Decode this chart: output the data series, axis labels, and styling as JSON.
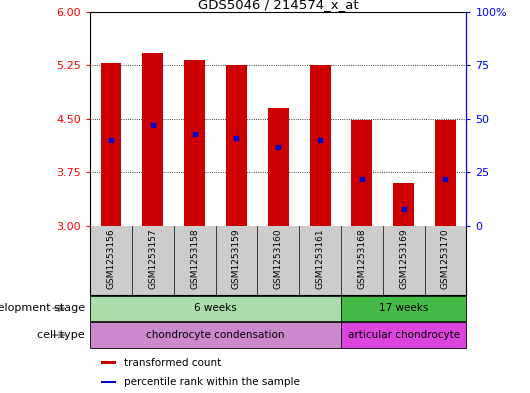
{
  "title": "GDS5046 / 214574_x_at",
  "samples": [
    "GSM1253156",
    "GSM1253157",
    "GSM1253158",
    "GSM1253159",
    "GSM1253160",
    "GSM1253161",
    "GSM1253168",
    "GSM1253169",
    "GSM1253170"
  ],
  "transformed_counts": [
    5.28,
    5.42,
    5.32,
    5.25,
    4.65,
    5.25,
    4.48,
    3.6,
    4.48
  ],
  "percentile_ranks": [
    40,
    47,
    43,
    41,
    37,
    40,
    22,
    8,
    22
  ],
  "ymin": 3.0,
  "ymax": 6.0,
  "yright_min": 0,
  "yright_max": 100,
  "yticks_left": [
    3,
    3.75,
    4.5,
    5.25,
    6
  ],
  "yticks_right": [
    0,
    25,
    50,
    75,
    100
  ],
  "grid_values": [
    3.75,
    4.5,
    5.25
  ],
  "bar_color": "#cc0000",
  "percentile_color": "#0000cc",
  "bar_width": 0.5,
  "dev_stage_groups": [
    {
      "label": "6 weeks",
      "start": 0,
      "end": 5,
      "color": "#aaddaa"
    },
    {
      "label": "17 weeks",
      "start": 6,
      "end": 8,
      "color": "#44bb44"
    }
  ],
  "cell_type_groups": [
    {
      "label": "chondrocyte condensation",
      "start": 0,
      "end": 5,
      "color": "#cc88cc"
    },
    {
      "label": "articular chondrocyte",
      "start": 6,
      "end": 8,
      "color": "#dd44dd"
    }
  ],
  "dev_stage_label": "development stage",
  "cell_type_label": "cell type",
  "legend_items": [
    {
      "label": "transformed count",
      "color": "#cc0000"
    },
    {
      "label": "percentile rank within the sample",
      "color": "#0000cc"
    }
  ],
  "background_color": "#ffffff",
  "sample_box_color": "#cccccc"
}
